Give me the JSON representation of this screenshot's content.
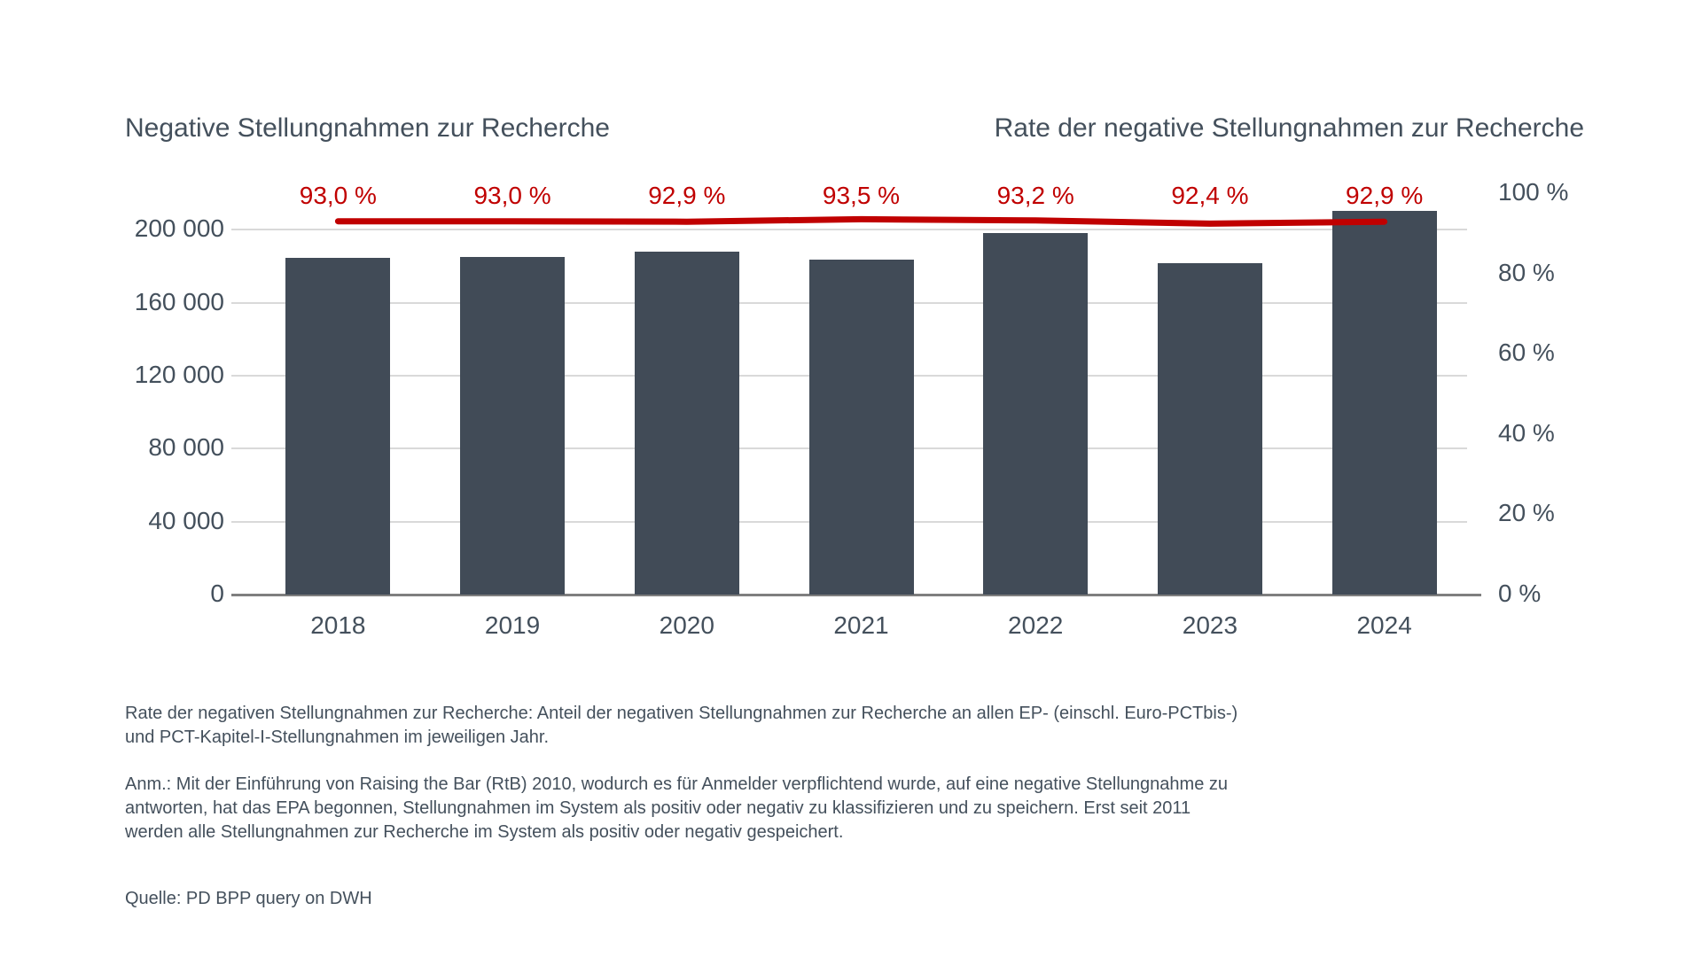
{
  "titles": {
    "left": "Negative Stellungnahmen zur Recherche",
    "right": "Rate der negative Stellungnahmen zur Recherche"
  },
  "chart_data": {
    "type": "bar",
    "categories": [
      "2018",
      "2019",
      "2020",
      "2021",
      "2022",
      "2023",
      "2024"
    ],
    "series": [
      {
        "name": "Negative Stellungnahmen zur Recherche",
        "type": "bar",
        "values": [
          184500,
          185000,
          188000,
          183500,
          198000,
          181500,
          210500
        ]
      },
      {
        "name": "Rate der negative Stellungnahmen zur Recherche",
        "type": "line",
        "values": [
          93.0,
          93.0,
          92.9,
          93.5,
          93.2,
          92.4,
          92.9
        ],
        "labels": [
          "93,0 %",
          "93,0 %",
          "92,9 %",
          "93,5 %",
          "93,2 %",
          "92,4 %",
          "92,9 %"
        ]
      }
    ],
    "left_axis": {
      "ticks": [
        "0",
        "40 000",
        "80 000",
        "120 000",
        "160 000",
        "200 000"
      ],
      "tick_values": [
        0,
        40000,
        80000,
        120000,
        160000,
        200000
      ],
      "max": 220000
    },
    "right_axis": {
      "ticks": [
        "0 %",
        "20 %",
        "40 %",
        "60 %",
        "80 %",
        "100 %"
      ],
      "tick_values": [
        0,
        20,
        40,
        60,
        80,
        100
      ],
      "max": 100
    },
    "grid": true,
    "legend_position": "titles-as-legend"
  },
  "colors": {
    "bar": "#414b57",
    "line_red": "#c00000",
    "text": "#44505c",
    "gridline": "#d9d9d9",
    "axis_line": "#7f7f7f"
  },
  "footnotes": {
    "para1": {
      "lines": [
        "Rate der negativen Stellungnahmen zur Recherche: Anteil der negativen Stellungnahmen zur Recherche an allen EP- (einschl. Euro-PCTbis-)",
        "und PCT-Kapitel-I-Stellungnahmen im jeweiligen Jahr."
      ]
    },
    "para2": {
      "lines": [
        "Anm.: Mit der Einführung von Raising the Bar (RtB) 2010, wodurch es für Anmelder verpflichtend wurde, auf eine negative Stellungnahme zu",
        "antworten, hat das EPA begonnen, Stellungnahmen im System als positiv oder negativ zu klassifizieren und zu speichern. Erst seit 2011",
        "werden alle Stellungnahmen zur Recherche im System als positiv oder negativ gespeichert."
      ]
    },
    "source": "Quelle: PD BPP query on DWH"
  }
}
